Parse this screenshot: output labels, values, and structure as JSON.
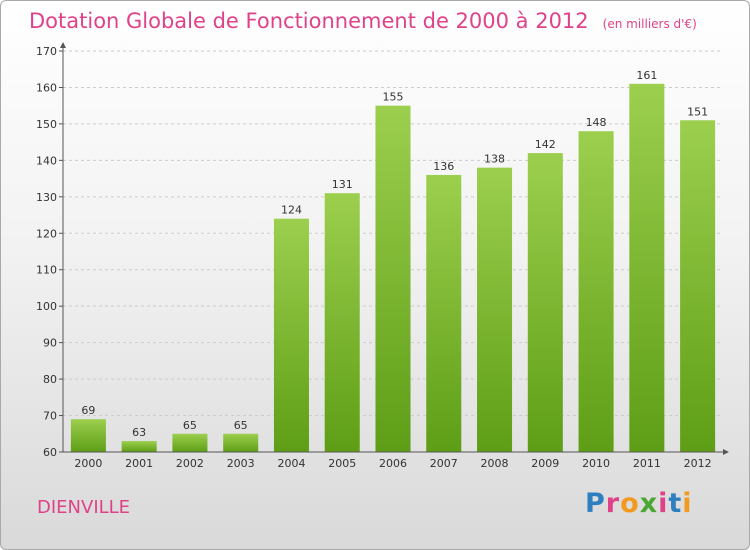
{
  "header": {
    "title": "Dotation Globale de Fonctionnement de 2000 à 2012",
    "subtitle": "(en milliers d'€)"
  },
  "footer": {
    "commune": "DIENVILLE",
    "logo_text": "Proxiti"
  },
  "colors": {
    "title": "#e0428a",
    "bar_top": "#9ccf4e",
    "bar_bottom": "#5e9e16",
    "axis": "#555555",
    "grid": "#cccccc",
    "logo_letters": [
      "#2e7fc0",
      "#e0428a",
      "#f29a1f",
      "#4aa832",
      "#e0428a",
      "#2e7fc0",
      "#f29a1f"
    ]
  },
  "chart_data": {
    "type": "bar",
    "categories": [
      "2000",
      "2001",
      "2002",
      "2003",
      "2004",
      "2005",
      "2006",
      "2007",
      "2008",
      "2009",
      "2010",
      "2011",
      "2012"
    ],
    "values": [
      69,
      63,
      65,
      65,
      124,
      131,
      155,
      136,
      138,
      142,
      148,
      161,
      151
    ],
    "title": "Dotation Globale de Fonctionnement de 2000 à 2012",
    "subtitle": "(en milliers d'€)",
    "ylim": [
      60,
      170
    ],
    "yticks": [
      60,
      70,
      80,
      90,
      100,
      110,
      120,
      130,
      140,
      150,
      160,
      170
    ],
    "grid": true,
    "data_labels": true
  }
}
